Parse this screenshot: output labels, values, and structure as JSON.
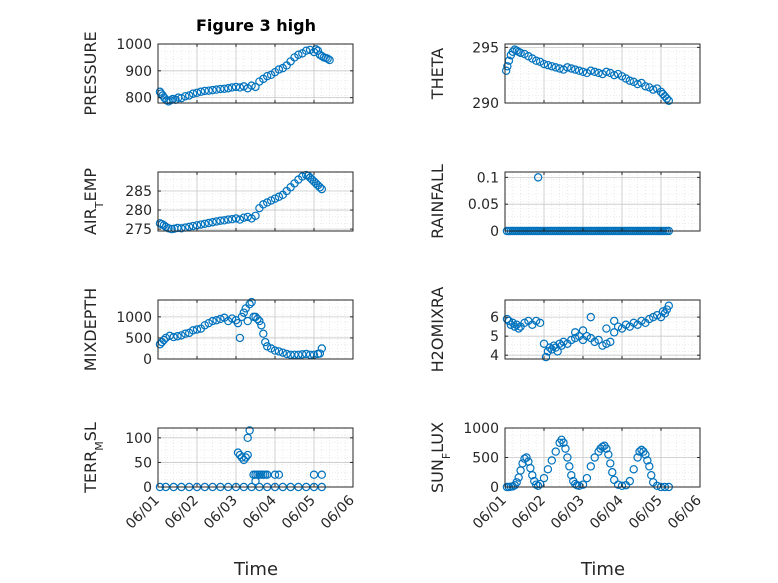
{
  "figure": {
    "title": "Figure 3 high",
    "marker_color": "#0072BD",
    "xlabel": "Time"
  },
  "chart_data": [
    {
      "type": "scatter",
      "ylabel": "PRESSURE",
      "xlim": [
        0,
        5
      ],
      "ylim": [
        780,
        1000
      ],
      "yticks": [
        800,
        900,
        1000
      ],
      "xtick_labels": [
        "06/01",
        "06/02",
        "06/03",
        "06/04",
        "06/05",
        "06/06"
      ],
      "x": [
        0.05,
        0.08,
        0.12,
        0.17,
        0.22,
        0.27,
        0.32,
        0.38,
        0.45,
        0.52,
        0.6,
        0.7,
        0.8,
        0.9,
        1.0,
        1.1,
        1.2,
        1.3,
        1.4,
        1.5,
        1.6,
        1.7,
        1.8,
        1.9,
        2.0,
        2.1,
        2.2,
        2.3,
        2.4,
        2.5,
        2.6,
        2.7,
        2.8,
        2.9,
        3.0,
        3.1,
        3.2,
        3.3,
        3.4,
        3.5,
        3.6,
        3.7,
        3.8,
        3.9,
        4.0,
        4.05,
        4.1,
        4.15,
        4.2,
        4.25,
        4.3,
        4.35,
        4.4
      ],
      "y": [
        822,
        815,
        808,
        798,
        790,
        786,
        790,
        795,
        792,
        800,
        798,
        805,
        808,
        815,
        818,
        822,
        825,
        826,
        828,
        830,
        832,
        833,
        835,
        838,
        840,
        838,
        842,
        835,
        845,
        840,
        860,
        870,
        880,
        885,
        895,
        905,
        910,
        920,
        935,
        950,
        960,
        965,
        975,
        978,
        970,
        980,
        975,
        960,
        955,
        950,
        948,
        945,
        940
      ]
    },
    {
      "type": "scatter",
      "ylabel": "THETA",
      "xlim": [
        0,
        5
      ],
      "ylim": [
        290,
        295.3
      ],
      "yticks": [
        290,
        295
      ],
      "xtick_labels": [
        "06/01",
        "06/02",
        "06/03",
        "06/04",
        "06/05",
        "06/06"
      ],
      "x": [
        0.03,
        0.06,
        0.1,
        0.15,
        0.2,
        0.25,
        0.3,
        0.35,
        0.4,
        0.5,
        0.6,
        0.7,
        0.8,
        0.9,
        1.0,
        1.1,
        1.2,
        1.3,
        1.4,
        1.5,
        1.6,
        1.7,
        1.8,
        1.9,
        2.0,
        2.1,
        2.2,
        2.3,
        2.4,
        2.5,
        2.6,
        2.7,
        2.8,
        2.9,
        3.0,
        3.1,
        3.2,
        3.3,
        3.4,
        3.5,
        3.6,
        3.7,
        3.8,
        3.9,
        4.0,
        4.05,
        4.1,
        4.15,
        4.2
      ],
      "y": [
        292.9,
        293.3,
        293.8,
        294.3,
        294.6,
        294.8,
        294.7,
        294.6,
        294.5,
        294.4,
        294.2,
        294.0,
        293.8,
        293.7,
        293.5,
        293.4,
        293.3,
        293.2,
        293.1,
        293.0,
        293.2,
        293.1,
        293.0,
        292.9,
        292.8,
        292.7,
        292.9,
        292.8,
        292.7,
        292.6,
        292.8,
        292.7,
        292.5,
        292.6,
        292.4,
        292.2,
        292.0,
        291.9,
        291.7,
        291.8,
        291.5,
        291.4,
        291.2,
        291.3,
        291.0,
        290.8,
        290.6,
        290.4,
        290.2
      ]
    },
    {
      "type": "scatter",
      "ylabel": "AIR_TEMP",
      "xlim": [
        0,
        5
      ],
      "ylim": [
        274.5,
        290
      ],
      "yticks": [
        275,
        280,
        285
      ],
      "xtick_labels": [
        "06/01",
        "06/02",
        "06/03",
        "06/04",
        "06/05",
        "06/06"
      ],
      "x": [
        0.05,
        0.1,
        0.15,
        0.2,
        0.27,
        0.35,
        0.42,
        0.5,
        0.6,
        0.7,
        0.8,
        0.9,
        1.0,
        1.1,
        1.2,
        1.3,
        1.4,
        1.5,
        1.6,
        1.7,
        1.8,
        1.9,
        2.0,
        2.1,
        2.2,
        2.3,
        2.4,
        2.5,
        2.6,
        2.7,
        2.8,
        2.9,
        3.0,
        3.1,
        3.2,
        3.3,
        3.4,
        3.5,
        3.6,
        3.7,
        3.8,
        3.85,
        3.9,
        3.95,
        4.0,
        4.05,
        4.1,
        4.15,
        4.2
      ],
      "y": [
        276.5,
        276.3,
        276.0,
        275.6,
        275.2,
        275.0,
        275.1,
        275.3,
        275.2,
        275.4,
        275.6,
        275.8,
        276.0,
        276.2,
        276.4,
        276.6,
        276.8,
        277.0,
        277.2,
        277.3,
        277.5,
        277.6,
        277.8,
        277.5,
        278.0,
        278.2,
        277.8,
        278.5,
        280.5,
        281.5,
        282.0,
        282.5,
        283.0,
        283.5,
        284.0,
        285.0,
        286.0,
        287.0,
        288.0,
        288.8,
        289.2,
        289.0,
        288.5,
        288.0,
        287.5,
        287.0,
        286.5,
        286.0,
        285.5
      ]
    },
    {
      "type": "scatter",
      "ylabel": "RAINFALL",
      "xlim": [
        0,
        5
      ],
      "ylim": [
        0,
        0.11
      ],
      "yticks": [
        0,
        0.05,
        0.1
      ],
      "xtick_labels": [
        "06/01",
        "06/02",
        "06/03",
        "06/04",
        "06/05",
        "06/06"
      ],
      "x": [
        0.05,
        0.1,
        0.15,
        0.2,
        0.25,
        0.3,
        0.35,
        0.4,
        0.45,
        0.5,
        0.55,
        0.6,
        0.65,
        0.7,
        0.75,
        0.8,
        0.85,
        0.9,
        0.95,
        1.0,
        1.05,
        1.1,
        1.15,
        1.2,
        1.25,
        1.3,
        1.35,
        1.4,
        1.45,
        1.5,
        1.55,
        1.6,
        1.65,
        1.7,
        1.75,
        1.8,
        1.85,
        1.9,
        1.95,
        2.0,
        2.05,
        2.1,
        2.15,
        2.2,
        2.25,
        2.3,
        2.35,
        2.4,
        2.45,
        2.5,
        2.55,
        2.6,
        2.65,
        2.7,
        2.75,
        2.8,
        2.85,
        2.9,
        2.95,
        3.0,
        3.05,
        3.1,
        3.15,
        3.2,
        3.25,
        3.3,
        3.35,
        3.4,
        3.45,
        3.5,
        3.55,
        3.6,
        3.65,
        3.7,
        3.75,
        3.8,
        3.85,
        3.9,
        3.95,
        4.0,
        4.05,
        4.1,
        4.15,
        4.2,
        0.85
      ],
      "y": [
        0,
        0,
        0,
        0,
        0,
        0,
        0,
        0,
        0,
        0,
        0,
        0,
        0,
        0,
        0,
        0,
        0,
        0,
        0,
        0,
        0,
        0,
        0,
        0,
        0,
        0,
        0,
        0,
        0,
        0,
        0,
        0,
        0,
        0,
        0,
        0,
        0,
        0,
        0,
        0,
        0,
        0,
        0,
        0,
        0,
        0,
        0,
        0,
        0,
        0,
        0,
        0,
        0,
        0,
        0,
        0,
        0,
        0,
        0,
        0,
        0,
        0,
        0,
        0,
        0,
        0,
        0,
        0,
        0,
        0,
        0,
        0,
        0,
        0,
        0,
        0,
        0,
        0,
        0,
        0,
        0,
        0,
        0,
        0,
        0.1
      ]
    },
    {
      "type": "scatter",
      "ylabel": "MIXDEPTH",
      "xlim": [
        0,
        5
      ],
      "ylim": [
        0,
        1400
      ],
      "yticks": [
        0,
        500,
        1000
      ],
      "xtick_labels": [
        "06/01",
        "06/02",
        "06/03",
        "06/04",
        "06/05",
        "06/06"
      ],
      "x": [
        0.05,
        0.1,
        0.15,
        0.2,
        0.3,
        0.4,
        0.5,
        0.6,
        0.7,
        0.8,
        0.9,
        1.0,
        1.1,
        1.2,
        1.3,
        1.4,
        1.5,
        1.6,
        1.7,
        1.8,
        1.9,
        2.0,
        2.05,
        2.1,
        2.15,
        2.2,
        2.25,
        2.3,
        2.35,
        2.4,
        2.45,
        2.5,
        2.55,
        2.6,
        2.65,
        2.7,
        2.75,
        2.8,
        2.9,
        3.0,
        3.1,
        3.2,
        3.3,
        3.4,
        3.5,
        3.6,
        3.7,
        3.8,
        3.9,
        4.0,
        4.1,
        4.15,
        4.2
      ],
      "y": [
        350,
        400,
        450,
        500,
        550,
        520,
        540,
        560,
        600,
        620,
        680,
        700,
        720,
        800,
        850,
        900,
        920,
        950,
        980,
        900,
        960,
        920,
        850,
        500,
        1000,
        1100,
        1200,
        900,
        1300,
        1350,
        1000,
        1000,
        950,
        900,
        800,
        600,
        400,
        300,
        250,
        200,
        180,
        150,
        120,
        100,
        100,
        100,
        110,
        120,
        100,
        100,
        120,
        130,
        250
      ]
    },
    {
      "type": "scatter",
      "ylabel": "H2OMIXRA",
      "xlim": [
        0,
        5
      ],
      "ylim": [
        3.8,
        6.9
      ],
      "yticks": [
        4,
        5,
        6
      ],
      "xtick_labels": [
        "06/01",
        "06/02",
        "06/03",
        "06/04",
        "06/05",
        "06/06"
      ],
      "x": [
        0.05,
        0.1,
        0.15,
        0.2,
        0.25,
        0.3,
        0.35,
        0.4,
        0.5,
        0.6,
        0.7,
        0.8,
        0.9,
        1.0,
        1.05,
        1.1,
        1.15,
        1.2,
        1.25,
        1.3,
        1.35,
        1.4,
        1.45,
        1.5,
        1.6,
        1.7,
        1.8,
        1.9,
        2.0,
        2.1,
        2.2,
        2.3,
        2.4,
        2.5,
        2.6,
        2.7,
        2.8,
        2.9,
        3.0,
        3.1,
        3.2,
        3.3,
        3.4,
        3.5,
        3.6,
        3.7,
        3.8,
        3.9,
        4.0,
        4.05,
        4.1,
        4.15,
        4.2,
        1.8,
        2.0,
        2.2,
        2.6,
        2.8
      ],
      "y": [
        5.9,
        5.8,
        5.6,
        5.7,
        5.5,
        5.6,
        5.4,
        5.5,
        5.7,
        5.8,
        5.6,
        5.8,
        5.7,
        4.6,
        3.9,
        4.2,
        4.4,
        4.3,
        4.5,
        4.4,
        4.2,
        4.6,
        4.5,
        4.7,
        4.6,
        4.8,
        4.9,
        5.0,
        4.8,
        5.0,
        4.9,
        4.7,
        4.8,
        4.5,
        4.6,
        4.7,
        5.2,
        5.5,
        5.4,
        5.6,
        5.5,
        5.7,
        5.6,
        5.8,
        5.7,
        5.9,
        6.0,
        6.1,
        6.0,
        6.3,
        6.2,
        6.4,
        6.6,
        5.2,
        5.3,
        6.0,
        5.4,
        5.8
      ]
    },
    {
      "type": "scatter",
      "ylabel": "TERR_MSL",
      "xlim": [
        0,
        5
      ],
      "ylim": [
        0,
        120
      ],
      "yticks": [
        0,
        50,
        100
      ],
      "xtick_labels": [
        "06/01",
        "06/02",
        "06/03",
        "06/04",
        "06/05",
        "06/06"
      ],
      "x": [
        0.05,
        0.2,
        0.4,
        0.6,
        0.8,
        1.0,
        1.2,
        1.4,
        1.6,
        1.8,
        2.0,
        2.2,
        2.4,
        2.6,
        2.8,
        3.0,
        3.2,
        3.4,
        3.6,
        3.8,
        4.0,
        4.2,
        2.05,
        2.1,
        2.15,
        2.2,
        2.25,
        2.3,
        2.35,
        2.3,
        2.5,
        2.6,
        2.7,
        2.8,
        3.0,
        3.1,
        2.5,
        4.0,
        4.2,
        2.45,
        2.55,
        2.65,
        2.75
      ],
      "y": [
        0,
        0,
        0,
        0,
        0,
        0,
        0,
        0,
        0,
        0,
        0,
        0,
        0,
        0,
        0,
        0,
        0,
        0,
        0,
        0,
        0,
        0,
        70,
        65,
        60,
        55,
        60,
        65,
        115,
        100,
        25,
        25,
        25,
        25,
        25,
        25,
        12,
        25,
        25,
        25,
        25,
        25,
        25
      ]
    },
    {
      "type": "scatter",
      "ylabel": "SUN_FLUX",
      "xlim": [
        0,
        5
      ],
      "ylim": [
        0,
        1000
      ],
      "yticks": [
        0,
        500,
        1000
      ],
      "xtick_labels": [
        "06/01",
        "06/02",
        "06/03",
        "06/04",
        "06/05",
        "06/06"
      ],
      "x": [
        0.05,
        0.1,
        0.15,
        0.2,
        0.25,
        0.3,
        0.35,
        0.4,
        0.45,
        0.5,
        0.55,
        0.6,
        0.65,
        0.7,
        0.75,
        0.8,
        0.85,
        0.9,
        1.0,
        1.1,
        1.2,
        1.3,
        1.4,
        1.45,
        1.5,
        1.55,
        1.6,
        1.65,
        1.7,
        1.75,
        1.8,
        1.85,
        1.9,
        2.0,
        2.1,
        2.2,
        2.3,
        2.4,
        2.45,
        2.5,
        2.55,
        2.6,
        2.65,
        2.7,
        2.75,
        2.8,
        2.9,
        3.0,
        3.1,
        3.2,
        3.3,
        3.4,
        3.45,
        3.5,
        3.55,
        3.6,
        3.65,
        3.7,
        3.75,
        3.8,
        3.9,
        4.0,
        4.1,
        4.2
      ],
      "y": [
        0,
        0,
        5,
        10,
        30,
        80,
        160,
        280,
        400,
        480,
        500,
        430,
        320,
        200,
        100,
        40,
        20,
        50,
        150,
        300,
        450,
        600,
        750,
        800,
        750,
        650,
        500,
        350,
        200,
        100,
        50,
        30,
        20,
        40,
        150,
        350,
        500,
        600,
        650,
        680,
        700,
        650,
        550,
        400,
        250,
        120,
        40,
        20,
        30,
        100,
        300,
        500,
        600,
        630,
        600,
        550,
        450,
        350,
        200,
        80,
        20,
        0,
        0,
        0
      ]
    }
  ]
}
